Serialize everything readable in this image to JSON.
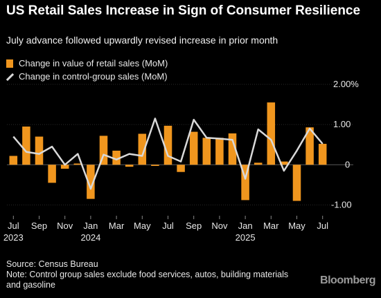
{
  "title": "US Retail Sales Increase in Sign of Consumer Resilience",
  "subtitle": "July advance followed upwardly revised increase in prior month",
  "legend": [
    {
      "label": "Change in value of retail sales (MoM)",
      "color": "#f0961e",
      "kind": "bar"
    },
    {
      "label": "Change in control-group sales (MoM)",
      "color": "#d9d9d9",
      "kind": "line"
    }
  ],
  "footer": {
    "source": "Source: Census Bureau",
    "note": "Note: Control group sales exclude food services, autos, building materials and gasoline"
  },
  "brand": "Bloomberg",
  "chart_data": {
    "type": "bar",
    "ylim": [
      -1.2,
      2.0
    ],
    "yticks": [
      {
        "value": 2.0,
        "label": "2.00%"
      },
      {
        "value": 1.0,
        "label": "1.00"
      },
      {
        "value": 0.0,
        "label": "0"
      },
      {
        "value": -1.0,
        "label": "-1.00"
      }
    ],
    "x": [
      "2023-07",
      "2023-08",
      "2023-09",
      "2023-10",
      "2023-11",
      "2023-12",
      "2024-01",
      "2024-02",
      "2024-03",
      "2024-04",
      "2024-05",
      "2024-06",
      "2024-07",
      "2024-08",
      "2024-09",
      "2024-10",
      "2024-11",
      "2024-12",
      "2025-01",
      "2025-02",
      "2025-03",
      "2025-04",
      "2025-05",
      "2025-06",
      "2025-07"
    ],
    "xticks": [
      {
        "index": 0,
        "label": "Jul",
        "year": "2023"
      },
      {
        "index": 2,
        "label": "Sep",
        "year": ""
      },
      {
        "index": 4,
        "label": "Nov",
        "year": ""
      },
      {
        "index": 6,
        "label": "Jan",
        "year": "2024"
      },
      {
        "index": 8,
        "label": "Mar",
        "year": ""
      },
      {
        "index": 10,
        "label": "May",
        "year": ""
      },
      {
        "index": 12,
        "label": "Jul",
        "year": ""
      },
      {
        "index": 14,
        "label": "Sep",
        "year": ""
      },
      {
        "index": 16,
        "label": "Nov",
        "year": ""
      },
      {
        "index": 18,
        "label": "Jan",
        "year": "2025"
      },
      {
        "index": 20,
        "label": "Mar",
        "year": ""
      },
      {
        "index": 22,
        "label": "May",
        "year": ""
      },
      {
        "index": 24,
        "label": "Jul",
        "year": ""
      }
    ],
    "series": [
      {
        "name": "Change in value of retail sales (MoM)",
        "kind": "bar",
        "values": [
          0.22,
          0.95,
          0.7,
          -0.45,
          -0.1,
          0.03,
          -0.85,
          0.72,
          0.35,
          -0.05,
          0.77,
          -0.03,
          0.97,
          -0.18,
          0.82,
          0.67,
          0.67,
          0.78,
          -0.88,
          0.05,
          1.55,
          0.08,
          -0.9,
          0.93,
          0.52
        ]
      },
      {
        "name": "Change in control-group sales (MoM)",
        "kind": "line",
        "values": [
          0.7,
          0.32,
          0.27,
          0.45,
          0.0,
          0.27,
          -0.6,
          0.25,
          0.13,
          0.27,
          0.22,
          1.15,
          0.22,
          0.08,
          1.12,
          0.67,
          0.65,
          0.62,
          -0.35,
          0.88,
          0.62,
          -0.15,
          0.35,
          0.9,
          0.52
        ]
      }
    ]
  }
}
